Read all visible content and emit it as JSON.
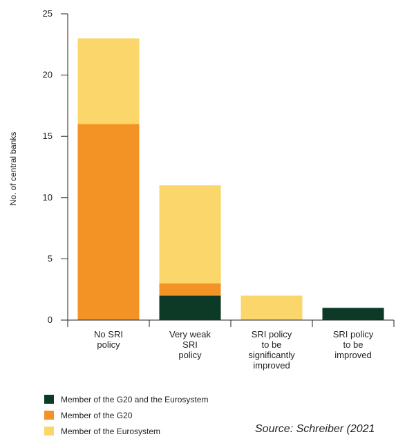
{
  "chart_data": {
    "type": "bar",
    "stacked": true,
    "ylabel": "No. of central banks",
    "ylim": [
      0,
      25
    ],
    "yticks": [
      0,
      5,
      10,
      15,
      20,
      25
    ],
    "grid": false,
    "legend_position": "bottom-left",
    "categories": [
      [
        "No SRI",
        "policy"
      ],
      [
        "Very weak",
        "SRI",
        "policy"
      ],
      [
        "SRI policy",
        "to be",
        "significantly",
        "improved"
      ],
      [
        "SRI policy",
        "to be",
        "improved"
      ]
    ],
    "series": [
      {
        "name": "Member of the G20 and the Eurosystem",
        "color": "#0d3a26",
        "values": [
          0,
          2,
          0,
          1
        ]
      },
      {
        "name": "Member of the G20",
        "color": "#f39325",
        "values": [
          16,
          1,
          0,
          0
        ]
      },
      {
        "name": "Member of the Eurosystem",
        "color": "#fbd66a",
        "values": [
          7,
          8,
          2,
          0
        ]
      }
    ]
  },
  "source": "Source: Schreiber (2021"
}
